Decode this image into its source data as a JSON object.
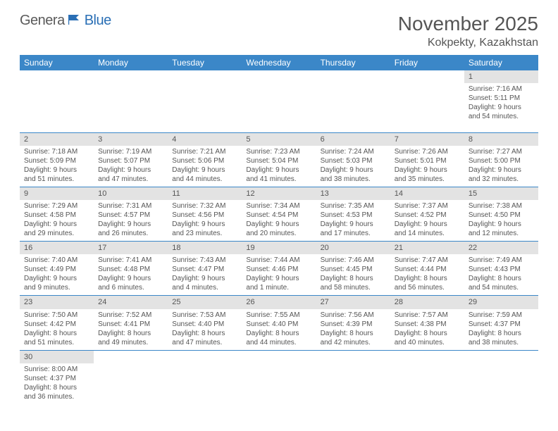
{
  "logo": {
    "part1": "Genera",
    "part2": "Blue"
  },
  "title": "November 2025",
  "location": "Kokpekty, Kazakhstan",
  "colors": {
    "header_bg": "#3b87c8",
    "header_text": "#ffffff",
    "daynum_bg": "#e3e3e3",
    "border": "#3b87c8",
    "text": "#555555",
    "logo_blue": "#2a6fb5"
  },
  "weekdays": [
    "Sunday",
    "Monday",
    "Tuesday",
    "Wednesday",
    "Thursday",
    "Friday",
    "Saturday"
  ],
  "weeks": [
    [
      null,
      null,
      null,
      null,
      null,
      null,
      {
        "n": "1",
        "sr": "Sunrise: 7:16 AM",
        "ss": "Sunset: 5:11 PM",
        "dl": "Daylight: 9 hours and 54 minutes."
      }
    ],
    [
      {
        "n": "2",
        "sr": "Sunrise: 7:18 AM",
        "ss": "Sunset: 5:09 PM",
        "dl": "Daylight: 9 hours and 51 minutes."
      },
      {
        "n": "3",
        "sr": "Sunrise: 7:19 AM",
        "ss": "Sunset: 5:07 PM",
        "dl": "Daylight: 9 hours and 47 minutes."
      },
      {
        "n": "4",
        "sr": "Sunrise: 7:21 AM",
        "ss": "Sunset: 5:06 PM",
        "dl": "Daylight: 9 hours and 44 minutes."
      },
      {
        "n": "5",
        "sr": "Sunrise: 7:23 AM",
        "ss": "Sunset: 5:04 PM",
        "dl": "Daylight: 9 hours and 41 minutes."
      },
      {
        "n": "6",
        "sr": "Sunrise: 7:24 AM",
        "ss": "Sunset: 5:03 PM",
        "dl": "Daylight: 9 hours and 38 minutes."
      },
      {
        "n": "7",
        "sr": "Sunrise: 7:26 AM",
        "ss": "Sunset: 5:01 PM",
        "dl": "Daylight: 9 hours and 35 minutes."
      },
      {
        "n": "8",
        "sr": "Sunrise: 7:27 AM",
        "ss": "Sunset: 5:00 PM",
        "dl": "Daylight: 9 hours and 32 minutes."
      }
    ],
    [
      {
        "n": "9",
        "sr": "Sunrise: 7:29 AM",
        "ss": "Sunset: 4:58 PM",
        "dl": "Daylight: 9 hours and 29 minutes."
      },
      {
        "n": "10",
        "sr": "Sunrise: 7:31 AM",
        "ss": "Sunset: 4:57 PM",
        "dl": "Daylight: 9 hours and 26 minutes."
      },
      {
        "n": "11",
        "sr": "Sunrise: 7:32 AM",
        "ss": "Sunset: 4:56 PM",
        "dl": "Daylight: 9 hours and 23 minutes."
      },
      {
        "n": "12",
        "sr": "Sunrise: 7:34 AM",
        "ss": "Sunset: 4:54 PM",
        "dl": "Daylight: 9 hours and 20 minutes."
      },
      {
        "n": "13",
        "sr": "Sunrise: 7:35 AM",
        "ss": "Sunset: 4:53 PM",
        "dl": "Daylight: 9 hours and 17 minutes."
      },
      {
        "n": "14",
        "sr": "Sunrise: 7:37 AM",
        "ss": "Sunset: 4:52 PM",
        "dl": "Daylight: 9 hours and 14 minutes."
      },
      {
        "n": "15",
        "sr": "Sunrise: 7:38 AM",
        "ss": "Sunset: 4:50 PM",
        "dl": "Daylight: 9 hours and 12 minutes."
      }
    ],
    [
      {
        "n": "16",
        "sr": "Sunrise: 7:40 AM",
        "ss": "Sunset: 4:49 PM",
        "dl": "Daylight: 9 hours and 9 minutes."
      },
      {
        "n": "17",
        "sr": "Sunrise: 7:41 AM",
        "ss": "Sunset: 4:48 PM",
        "dl": "Daylight: 9 hours and 6 minutes."
      },
      {
        "n": "18",
        "sr": "Sunrise: 7:43 AM",
        "ss": "Sunset: 4:47 PM",
        "dl": "Daylight: 9 hours and 4 minutes."
      },
      {
        "n": "19",
        "sr": "Sunrise: 7:44 AM",
        "ss": "Sunset: 4:46 PM",
        "dl": "Daylight: 9 hours and 1 minute."
      },
      {
        "n": "20",
        "sr": "Sunrise: 7:46 AM",
        "ss": "Sunset: 4:45 PM",
        "dl": "Daylight: 8 hours and 58 minutes."
      },
      {
        "n": "21",
        "sr": "Sunrise: 7:47 AM",
        "ss": "Sunset: 4:44 PM",
        "dl": "Daylight: 8 hours and 56 minutes."
      },
      {
        "n": "22",
        "sr": "Sunrise: 7:49 AM",
        "ss": "Sunset: 4:43 PM",
        "dl": "Daylight: 8 hours and 54 minutes."
      }
    ],
    [
      {
        "n": "23",
        "sr": "Sunrise: 7:50 AM",
        "ss": "Sunset: 4:42 PM",
        "dl": "Daylight: 8 hours and 51 minutes."
      },
      {
        "n": "24",
        "sr": "Sunrise: 7:52 AM",
        "ss": "Sunset: 4:41 PM",
        "dl": "Daylight: 8 hours and 49 minutes."
      },
      {
        "n": "25",
        "sr": "Sunrise: 7:53 AM",
        "ss": "Sunset: 4:40 PM",
        "dl": "Daylight: 8 hours and 47 minutes."
      },
      {
        "n": "26",
        "sr": "Sunrise: 7:55 AM",
        "ss": "Sunset: 4:40 PM",
        "dl": "Daylight: 8 hours and 44 minutes."
      },
      {
        "n": "27",
        "sr": "Sunrise: 7:56 AM",
        "ss": "Sunset: 4:39 PM",
        "dl": "Daylight: 8 hours and 42 minutes."
      },
      {
        "n": "28",
        "sr": "Sunrise: 7:57 AM",
        "ss": "Sunset: 4:38 PM",
        "dl": "Daylight: 8 hours and 40 minutes."
      },
      {
        "n": "29",
        "sr": "Sunrise: 7:59 AM",
        "ss": "Sunset: 4:37 PM",
        "dl": "Daylight: 8 hours and 38 minutes."
      }
    ],
    [
      {
        "n": "30",
        "sr": "Sunrise: 8:00 AM",
        "ss": "Sunset: 4:37 PM",
        "dl": "Daylight: 8 hours and 36 minutes."
      },
      null,
      null,
      null,
      null,
      null,
      null
    ]
  ]
}
